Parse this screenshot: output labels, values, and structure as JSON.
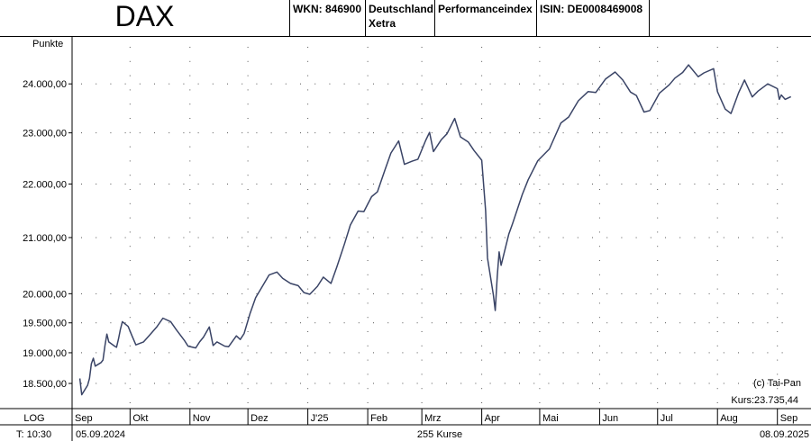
{
  "header": {
    "title": "DAX",
    "wkn": "WKN: 846900",
    "region_line1": "Deutschland",
    "region_line2": "Xetra",
    "index_type": "Performanceindex",
    "isin": "ISIN: DE0008469008"
  },
  "footer": {
    "scale_mode": "LOG",
    "timeframe": "T: 10:30",
    "start_date": "05.09.2024",
    "count_label": "255 Kurse",
    "end_date": "08.09.2025"
  },
  "annotations": {
    "copyright": "(c) Tai-Pan",
    "last_price": "Kurs:23.735,44"
  },
  "colors": {
    "line": "#3a4466",
    "grid_dots": "#555555"
  },
  "chart_data": {
    "type": "line",
    "ylabel": "Punkte",
    "y_scale": "log",
    "ylim": [
      18100,
      25000
    ],
    "y_ticks": [
      18500,
      19000,
      19500,
      20000,
      21000,
      22000,
      23000,
      24000
    ],
    "y_tick_labels": [
      "18.500,00",
      "19.000,00",
      "19.500,00",
      "20.000,00",
      "21.000,00",
      "22.000,00",
      "23.000,00",
      "24.000,00"
    ],
    "x_range": [
      "2024-09-01",
      "2025-09-10"
    ],
    "x_ticks": [
      "2024-09-01",
      "2024-10-01",
      "2024-11-01",
      "2024-12-01",
      "2025-01-01",
      "2025-02-01",
      "2025-03-01",
      "2025-04-01",
      "2025-05-01",
      "2025-06-01",
      "2025-07-01",
      "2025-08-01",
      "2025-09-01"
    ],
    "x_tick_labels": [
      "Sep",
      "Okt",
      "Nov",
      "Dez",
      "J'25",
      "Feb",
      "Mrz",
      "Apr",
      "Mai",
      "Jun",
      "Jul",
      "Aug",
      "Sep"
    ],
    "grid": true,
    "series": [
      {
        "x": [
          "2024-09-05",
          "2024-09-06",
          "2024-09-09",
          "2024-09-10",
          "2024-09-11",
          "2024-09-12",
          "2024-09-13",
          "2024-09-16",
          "2024-09-17",
          "2024-09-18",
          "2024-09-19",
          "2024-09-20",
          "2024-09-23",
          "2024-09-24",
          "2024-09-25",
          "2024-09-26",
          "2024-09-27",
          "2024-09-30",
          "2024-10-02",
          "2024-10-04",
          "2024-10-08",
          "2024-10-11",
          "2024-10-15",
          "2024-10-18",
          "2024-10-22",
          "2024-10-25",
          "2024-10-29",
          "2024-10-31",
          "2024-11-04",
          "2024-11-06",
          "2024-11-08",
          "2024-11-11",
          "2024-11-13",
          "2024-11-15",
          "2024-11-19",
          "2024-11-21",
          "2024-11-25",
          "2024-11-27",
          "2024-11-29",
          "2024-12-02",
          "2024-12-05",
          "2024-12-09",
          "2024-12-12",
          "2024-12-16",
          "2024-12-19",
          "2024-12-23",
          "2024-12-27",
          "2024-12-30",
          "2025-01-02",
          "2025-01-06",
          "2025-01-09",
          "2025-01-13",
          "2025-01-16",
          "2025-01-20",
          "2025-01-23",
          "2025-01-27",
          "2025-01-30",
          "2025-02-03",
          "2025-02-06",
          "2025-02-10",
          "2025-02-13",
          "2025-02-17",
          "2025-02-20",
          "2025-02-24",
          "2025-02-27",
          "2025-03-03",
          "2025-03-05",
          "2025-03-07",
          "2025-03-11",
          "2025-03-14",
          "2025-03-18",
          "2025-03-21",
          "2025-03-25",
          "2025-03-28",
          "2025-04-01",
          "2025-04-03",
          "2025-04-04",
          "2025-04-07",
          "2025-04-08",
          "2025-04-09",
          "2025-04-10",
          "2025-04-11",
          "2025-04-15",
          "2025-04-17",
          "2025-04-22",
          "2025-04-25",
          "2025-04-30",
          "2025-05-06",
          "2025-05-12",
          "2025-05-16",
          "2025-05-21",
          "2025-05-26",
          "2025-05-30",
          "2025-06-04",
          "2025-06-09",
          "2025-06-13",
          "2025-06-17",
          "2025-06-20",
          "2025-06-24",
          "2025-06-27",
          "2025-07-02",
          "2025-07-07",
          "2025-07-10",
          "2025-07-14",
          "2025-07-17",
          "2025-07-22",
          "2025-07-25",
          "2025-07-30",
          "2025-08-01",
          "2025-08-05",
          "2025-08-08",
          "2025-08-12",
          "2025-08-15",
          "2025-08-19",
          "2025-08-22",
          "2025-08-27",
          "2025-09-01",
          "2025-09-02",
          "2025-09-03",
          "2025-09-05",
          "2025-09-08"
        ],
        "values": [
          18580,
          18320,
          18470,
          18580,
          18820,
          18910,
          18780,
          18840,
          18880,
          19120,
          19310,
          19180,
          19110,
          19090,
          19230,
          19390,
          19520,
          19440,
          19280,
          19130,
          19180,
          19290,
          19440,
          19580,
          19520,
          19380,
          19210,
          19110,
          19080,
          19180,
          19260,
          19430,
          19120,
          19180,
          19110,
          19100,
          19280,
          19220,
          19320,
          19650,
          19930,
          20160,
          20330,
          20380,
          20270,
          20180,
          20140,
          20020,
          19990,
          20130,
          20290,
          20180,
          20470,
          20890,
          21230,
          21490,
          21480,
          21760,
          21850,
          22280,
          22600,
          22840,
          22380,
          22440,
          22480,
          22850,
          23010,
          22630,
          22860,
          22980,
          23290,
          22920,
          22820,
          22650,
          22460,
          21500,
          20630,
          19980,
          19710,
          20300,
          20740,
          20500,
          21060,
          21260,
          21800,
          22080,
          22450,
          22680,
          23200,
          23320,
          23650,
          23840,
          23820,
          24100,
          24250,
          24080,
          23830,
          23760,
          23420,
          23450,
          23810,
          23980,
          24120,
          24240,
          24400,
          24150,
          24230,
          24320,
          23840,
          23480,
          23390,
          23820,
          24080,
          23730,
          23850,
          24000,
          23900,
          23680,
          23770,
          23680,
          23735
        ]
      }
    ]
  }
}
